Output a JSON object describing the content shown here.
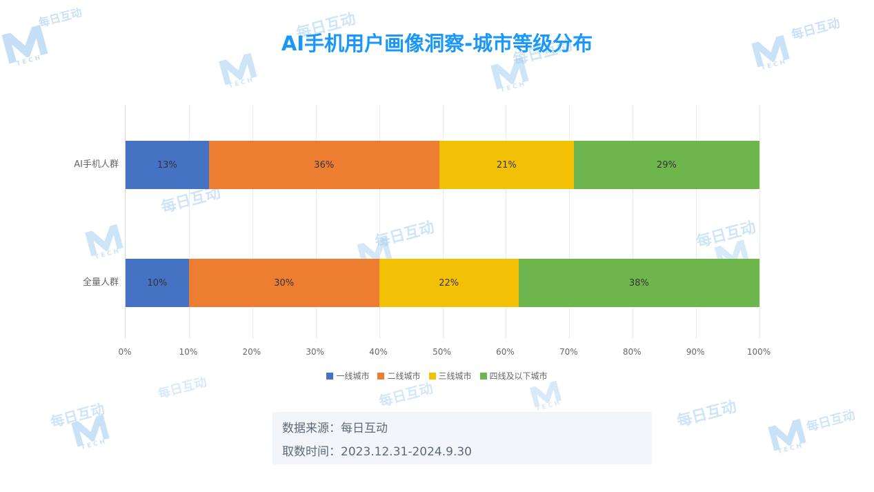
{
  "title": "AI手机用户画像洞察-城市等级分布",
  "watermark": {
    "text": "每日互动",
    "logo_sub": "TECH"
  },
  "chart_data": {
    "type": "bar",
    "orientation": "horizontal",
    "stacked": true,
    "title": "AI手机用户画像洞察-城市等级分布",
    "categories": [
      "AI手机人群",
      "全量人群"
    ],
    "series": [
      {
        "name": "一线城市",
        "color": "#4672c4",
        "values": [
          13,
          10
        ]
      },
      {
        "name": "二线城市",
        "color": "#ed7d31",
        "values": [
          36,
          30
        ]
      },
      {
        "name": "三线城市",
        "color": "#f2c004",
        "values": [
          21,
          22
        ]
      },
      {
        "name": "四线及以下城市",
        "color": "#6eb64b",
        "values": [
          29,
          38
        ]
      }
    ],
    "xlim": [
      0,
      100
    ],
    "x_ticks": [
      "0%",
      "10%",
      "20%",
      "30%",
      "40%",
      "50%",
      "60%",
      "70%",
      "80%",
      "90%",
      "100%"
    ],
    "value_suffix": "%",
    "grid": true,
    "legend_position": "bottom"
  },
  "footer": {
    "source_label": "数据来源：每日互动",
    "time_label": "取数时间：2023.12.31-2024.9.30"
  }
}
